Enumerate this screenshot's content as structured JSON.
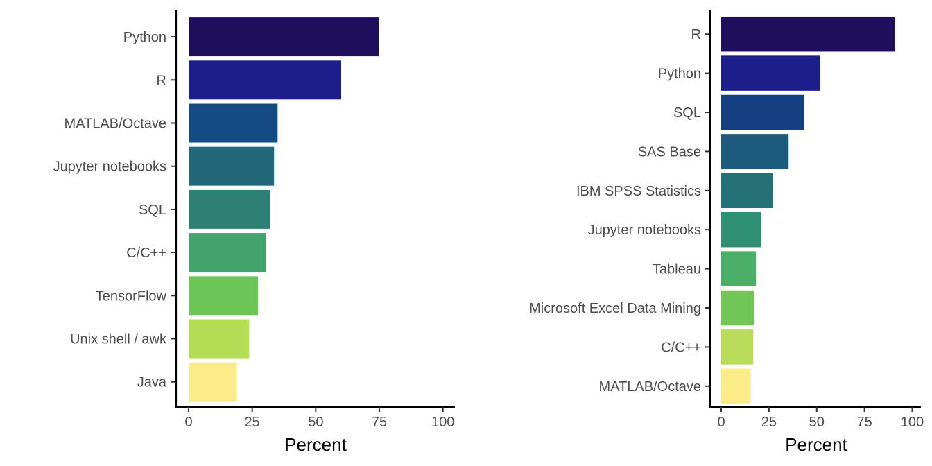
{
  "chart_data": [
    {
      "type": "bar",
      "orientation": "horizontal",
      "categories": [
        "Python",
        "R",
        "MATLAB/Octave",
        "Jupyter notebooks",
        "SQL",
        "C/C++",
        "TensorFlow",
        "Unix shell / awk",
        "Java"
      ],
      "values": [
        74.8,
        60.0,
        35.0,
        33.6,
        32.0,
        30.3,
        27.3,
        23.8,
        18.9
      ],
      "colors": [
        "#1f0e5c",
        "#1c1e8c",
        "#144b82",
        "#226878",
        "#2f8074",
        "#43a46b",
        "#6bc656",
        "#b5dc55",
        "#fbeb89"
      ],
      "xlabel": "Percent",
      "xlim": [
        0,
        104
      ],
      "xticks": [
        0,
        25,
        50,
        75,
        100
      ],
      "grid": false
    },
    {
      "type": "bar",
      "orientation": "horizontal",
      "categories": [
        "R",
        "Python",
        "SQL",
        "SAS Base",
        "IBM SPSS Statistics",
        "Jupyter notebooks",
        "Tableau",
        "Microsoft Excel Data Mining",
        "C/C++",
        "MATLAB/Octave"
      ],
      "values": [
        91.0,
        51.8,
        43.5,
        35.3,
        27.0,
        20.8,
        18.2,
        17.2,
        16.8,
        15.4
      ],
      "colors": [
        "#1f0e5c",
        "#1c1e8c",
        "#144081",
        "#1c5b7d",
        "#247276",
        "#2f9074",
        "#4baf68",
        "#71c656",
        "#badc5b",
        "#fbeb89"
      ],
      "xlabel": "Percent",
      "xlim": [
        0,
        104
      ],
      "xticks": [
        0,
        25,
        50,
        75,
        100
      ],
      "grid": false
    }
  ]
}
